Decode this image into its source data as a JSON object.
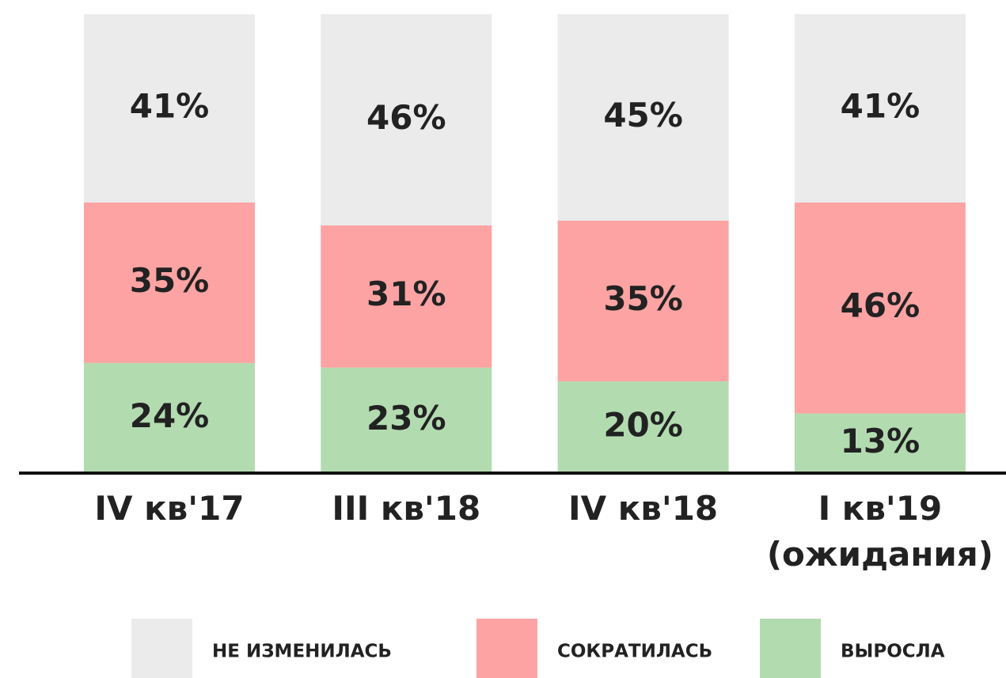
{
  "chart_data": {
    "type": "stacked_bar",
    "categories": [
      "IV кв'17",
      "III кв'18",
      "IV кв'18",
      "I кв'19 (ожидания)"
    ],
    "ylim": [
      0,
      100
    ],
    "legend": "bottom",
    "series": [
      {
        "name": "НЕ ИЗМЕНИЛАСЬ",
        "color": "#ebebeb",
        "values": [
          41,
          46,
          45,
          41
        ],
        "value_labels": [
          "41%",
          "46%",
          "45%",
          "41%"
        ]
      },
      {
        "name": "СОКРАТИЛАСЬ",
        "color": "#fea3a3",
        "values": [
          35,
          31,
          35,
          46
        ],
        "value_labels": [
          "35%",
          "31%",
          "35%",
          "46%"
        ]
      },
      {
        "name": "ВЫРОСЛА",
        "color": "#b3dbb0",
        "values": [
          24,
          23,
          20,
          13
        ],
        "value_labels": [
          "24%",
          "23%",
          "20%",
          "13%"
        ]
      }
    ]
  }
}
